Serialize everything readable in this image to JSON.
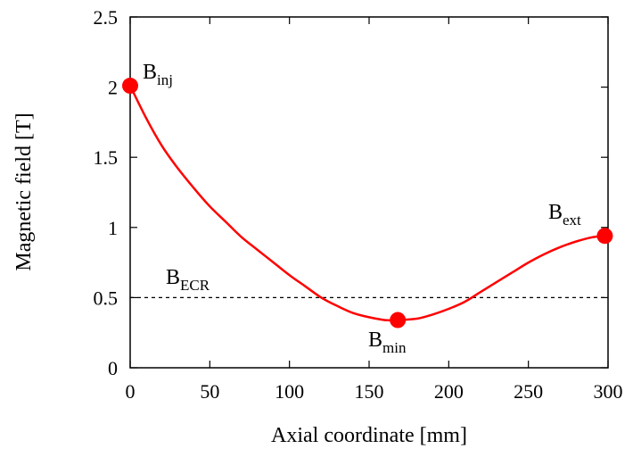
{
  "chart_data": {
    "type": "line",
    "xlabel": "Axial coordinate [mm]",
    "ylabel": "Magnetic field [T]",
    "xlim": [
      0,
      300
    ],
    "ylim": [
      0,
      2.5
    ],
    "xticks": [
      "0",
      "50",
      "100",
      "150",
      "200",
      "250",
      "300"
    ],
    "yticks": [
      "0",
      "0.5",
      "1",
      "1.5",
      "2",
      "2.5"
    ],
    "grid": false,
    "series": [
      {
        "color": "#ff0000",
        "x": [
          0,
          10,
          20,
          30,
          40,
          50,
          60,
          70,
          80,
          90,
          100,
          110,
          120,
          130,
          140,
          150,
          160,
          168,
          180,
          190,
          200,
          210,
          220,
          230,
          240,
          250,
          260,
          270,
          280,
          290,
          298
        ],
        "y": [
          2.01,
          1.78,
          1.58,
          1.42,
          1.28,
          1.15,
          1.04,
          0.93,
          0.84,
          0.75,
          0.66,
          0.58,
          0.5,
          0.44,
          0.39,
          0.36,
          0.34,
          0.34,
          0.35,
          0.38,
          0.42,
          0.47,
          0.54,
          0.61,
          0.68,
          0.75,
          0.81,
          0.86,
          0.9,
          0.93,
          0.94
        ]
      }
    ],
    "markers": [
      {
        "x": 0,
        "y": 2.01,
        "label": "B",
        "sub": "inj"
      },
      {
        "x": 168,
        "y": 0.34,
        "label": "B",
        "sub": "min"
      },
      {
        "x": 298,
        "y": 0.94,
        "label": "B",
        "sub": "ext"
      }
    ],
    "reference_line": {
      "y": 0.5,
      "style": "dashed",
      "label": "B",
      "sub": "ECR"
    },
    "marker_color": "#ff0000"
  }
}
